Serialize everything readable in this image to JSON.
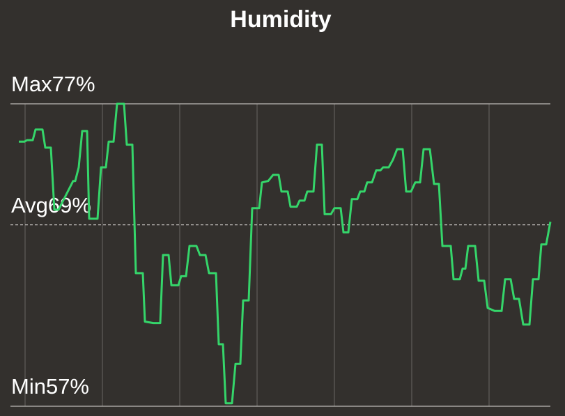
{
  "chart_data": {
    "type": "line",
    "title": "Humidity",
    "x": [
      0,
      8,
      12,
      20,
      24,
      34,
      38,
      46,
      51,
      57,
      78,
      81,
      86,
      91,
      98,
      101,
      113,
      118,
      125,
      129,
      136,
      141,
      151,
      155,
      163,
      168,
      178,
      181,
      193,
      203,
      207,
      215,
      219,
      229,
      233,
      240,
      245,
      255,
      260,
      268,
      273,
      283,
      287,
      293,
      297,
      306,
      311,
      318,
      322,
      330,
      335,
      345,
      349,
      358,
      365,
      373,
      377,
      386,
      390,
      399,
      403,
      410,
      414,
      423,
      428,
      435,
      439,
      448,
      453,
      462,
      466,
      473,
      478,
      486,
      490,
      496,
      500,
      507,
      513,
      519,
      523,
      531,
      537,
      543,
      551,
      556,
      563,
      569,
      576,
      581,
      590,
      596,
      603,
      608,
      620,
      624,
      633,
      637,
      641,
      645,
      655,
      660,
      668,
      673,
      683,
      693,
      698,
      706,
      711,
      718,
      724,
      733,
      738,
      746,
      750,
      757,
      763
    ],
    "series": [
      {
        "name": "Humidity",
        "color": "#35d56a",
        "values": [
          74.5,
          74.5,
          74.6,
          74.6,
          75.3,
          75.3,
          74.1,
          74.1,
          70.0,
          70.0,
          71.9,
          71.9,
          72.8,
          75.2,
          75.2,
          69.4,
          69.4,
          72.8,
          72.8,
          74.5,
          74.5,
          77.0,
          77.0,
          74.3,
          74.3,
          65.8,
          65.8,
          62.6,
          62.5,
          62.5,
          67.0,
          67.0,
          65.0,
          65.0,
          65.6,
          65.6,
          67.6,
          67.6,
          67.0,
          67.0,
          65.8,
          65.8,
          61.1,
          61.1,
          57.2,
          57.2,
          59.8,
          59.8,
          64.0,
          64.0,
          70.1,
          70.1,
          71.8,
          71.9,
          72.3,
          72.3,
          71.2,
          71.2,
          70.2,
          70.2,
          70.6,
          70.6,
          71.2,
          71.2,
          74.3,
          74.3,
          69.7,
          69.7,
          70.1,
          70.1,
          68.5,
          68.5,
          70.7,
          70.7,
          71.2,
          71.2,
          71.8,
          71.8,
          72.6,
          72.6,
          72.8,
          72.8,
          73.3,
          74.0,
          74.0,
          71.2,
          71.2,
          71.8,
          71.8,
          74.0,
          74.0,
          71.7,
          71.7,
          67.6,
          67.6,
          65.4,
          65.4,
          66.1,
          66.1,
          67.6,
          67.6,
          65.3,
          65.3,
          63.5,
          63.3,
          63.3,
          65.4,
          65.4,
          64.1,
          64.1,
          62.4,
          62.4,
          65.4,
          65.4,
          67.7,
          67.7,
          69.2
        ]
      }
    ],
    "xlim": [
      0,
      763
    ],
    "xticks": [
      9,
      120,
      231,
      342,
      453,
      564,
      675
    ],
    "ylim": [
      57,
      77
    ],
    "yticks": [
      {
        "value": 57,
        "label": "Min57%"
      },
      {
        "value": 69,
        "label": "Avg69%"
      },
      {
        "value": 77,
        "label": "Max77%"
      }
    ],
    "grid": true
  }
}
